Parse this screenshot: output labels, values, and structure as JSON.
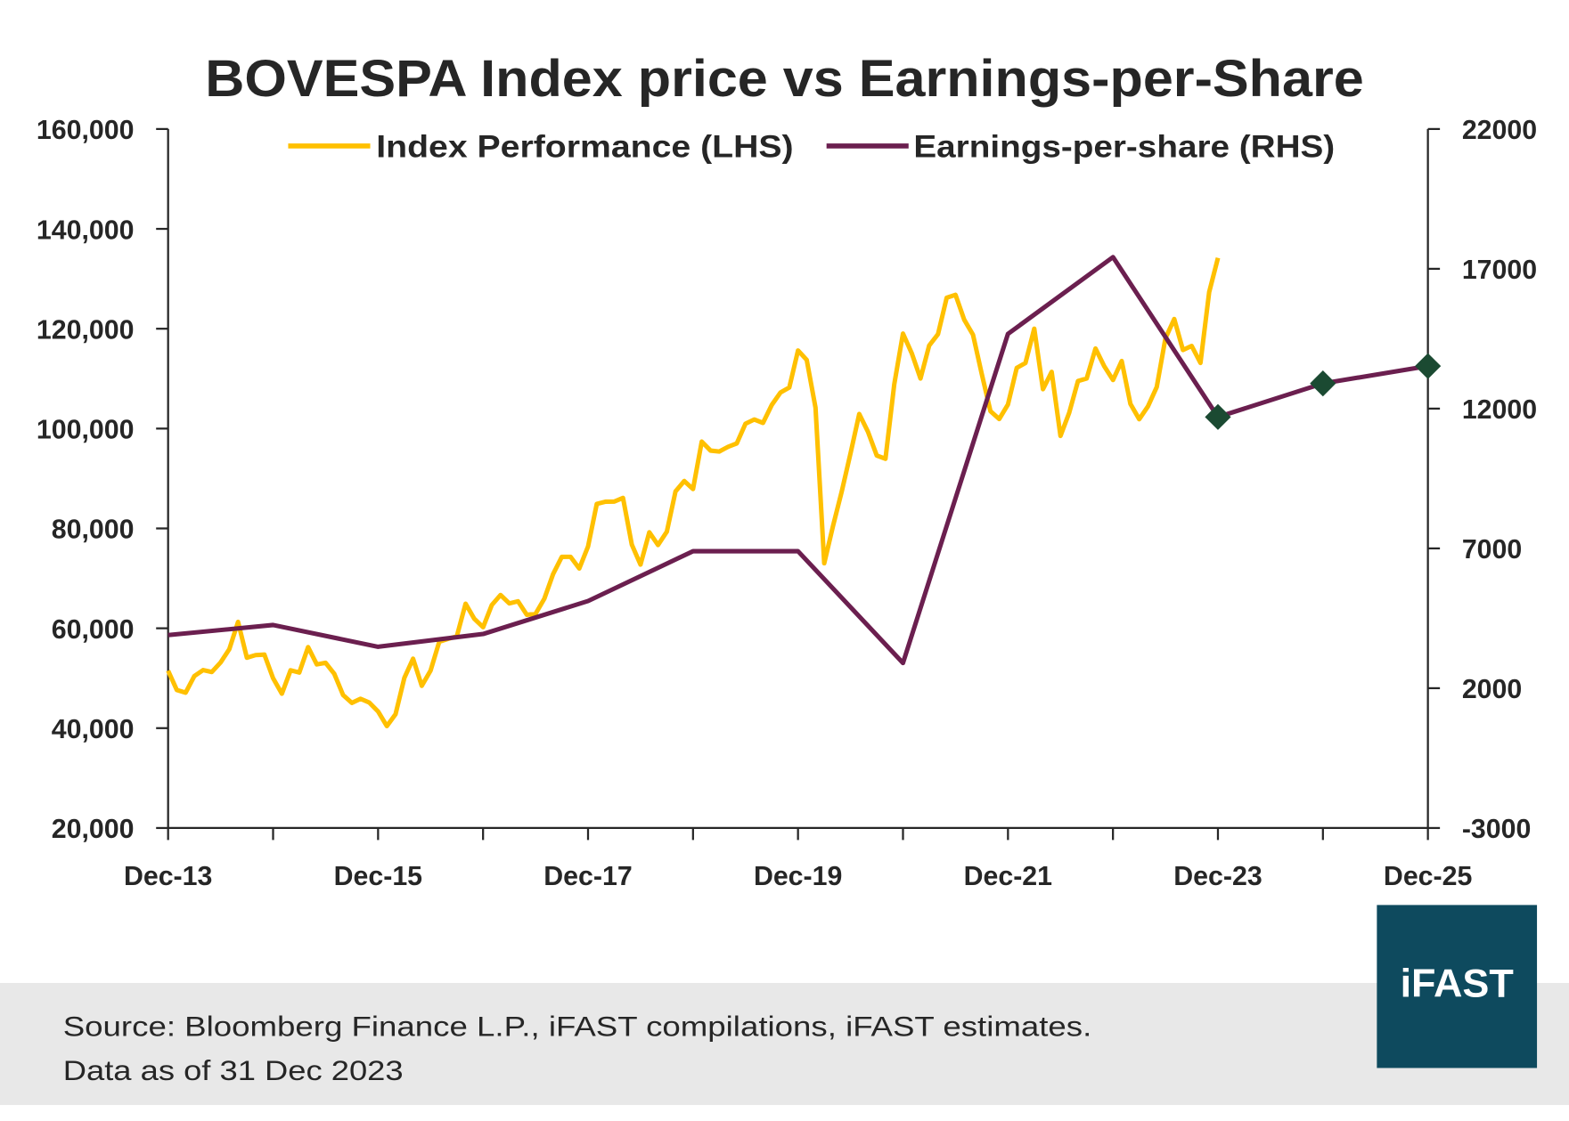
{
  "chart_data": {
    "type": "line",
    "title": "BOVESPA Index price vs Earnings-per-Share",
    "x_tick_labels": [
      "Dec-13",
      "Dec-15",
      "Dec-17",
      "Dec-19",
      "Dec-21",
      "Dec-23",
      "Dec-25"
    ],
    "y_left": {
      "range": [
        20000,
        160000
      ],
      "ticks": [
        "20,000",
        "40,000",
        "60,000",
        "80,000",
        "100,000",
        "120,000",
        "140,000",
        "160,000"
      ]
    },
    "y_right": {
      "range": [
        -3000,
        22000
      ],
      "ticks": [
        "-3000",
        "2000",
        "7000",
        "12000",
        "17000",
        "22000"
      ]
    },
    "grid": false,
    "legend_position": "top",
    "series": [
      {
        "name": "Index Performance (LHS)",
        "axis": "left",
        "color": "#FFC000",
        "start": "Dec-13",
        "frequency": "monthly",
        "values": [
          51507,
          47638,
          47094,
          50415,
          51627,
          51239,
          53168,
          55829,
          61288,
          54116,
          54629,
          54724,
          50007,
          46908,
          51583,
          51150,
          56229,
          52760,
          53081,
          50865,
          46626,
          45059,
          45869,
          45120,
          43350,
          40406,
          42794,
          50055,
          53910,
          48471,
          51527,
          57308,
          57901,
          58367,
          64925,
          61906,
          60227,
          64671,
          66662,
          64984,
          65403,
          62711,
          62900,
          65920,
          70835,
          74294,
          74308,
          71971,
          76402,
          84913,
          85354,
          85365,
          86115,
          76753,
          72762,
          79220,
          76677,
          79342,
          87424,
          89504,
          87887,
          97394,
          95584,
          95415,
          96353,
          97030,
          100967,
          101812,
          101135,
          104745,
          107220,
          108233,
          115645,
          113761,
          104172,
          73020,
          80506,
          87403,
          95056,
          102912,
          99369,
          94603,
          93952,
          108893,
          119017,
          115068,
          110035,
          116634,
          118894,
          126216,
          126802,
          121801,
          118781,
          110979,
          103501,
          101915,
          104822,
          112144,
          113142,
          119999,
          107876,
          111351,
          98542,
          103165,
          109523,
          110037,
          116037,
          112486,
          109735,
          113532,
          104932,
          101882,
          104432,
          108335,
          118087,
          121943,
          115742,
          116565,
          113144,
          127331,
          134185
        ]
      },
      {
        "name": "Earnings-per-share (RHS)",
        "axis": "right",
        "color": "#6B1F4F",
        "x": [
          "Dec-13",
          "Dec-14",
          "Dec-15",
          "Dec-16",
          "Dec-17",
          "Dec-18",
          "Dec-19",
          "Dec-20",
          "Dec-21",
          "Dec-22",
          "Dec-23",
          "Dec-24",
          "Dec-25"
        ],
        "values": [
          3900,
          4260,
          3480,
          3940,
          5120,
          6900,
          6900,
          2900,
          14670,
          17420,
          11700,
          12900,
          13520
        ],
        "estimate_markers": [
          "Dec-23",
          "Dec-24",
          "Dec-25"
        ],
        "marker_color": "#1B4A32"
      }
    ]
  },
  "footer": {
    "source": "Source: Bloomberg Finance L.P., iFAST compilations, iFAST estimates.",
    "date": "Data as of 31 Dec 2023"
  },
  "logo": {
    "text": "iFAST",
    "color": "#0E4A5E"
  }
}
